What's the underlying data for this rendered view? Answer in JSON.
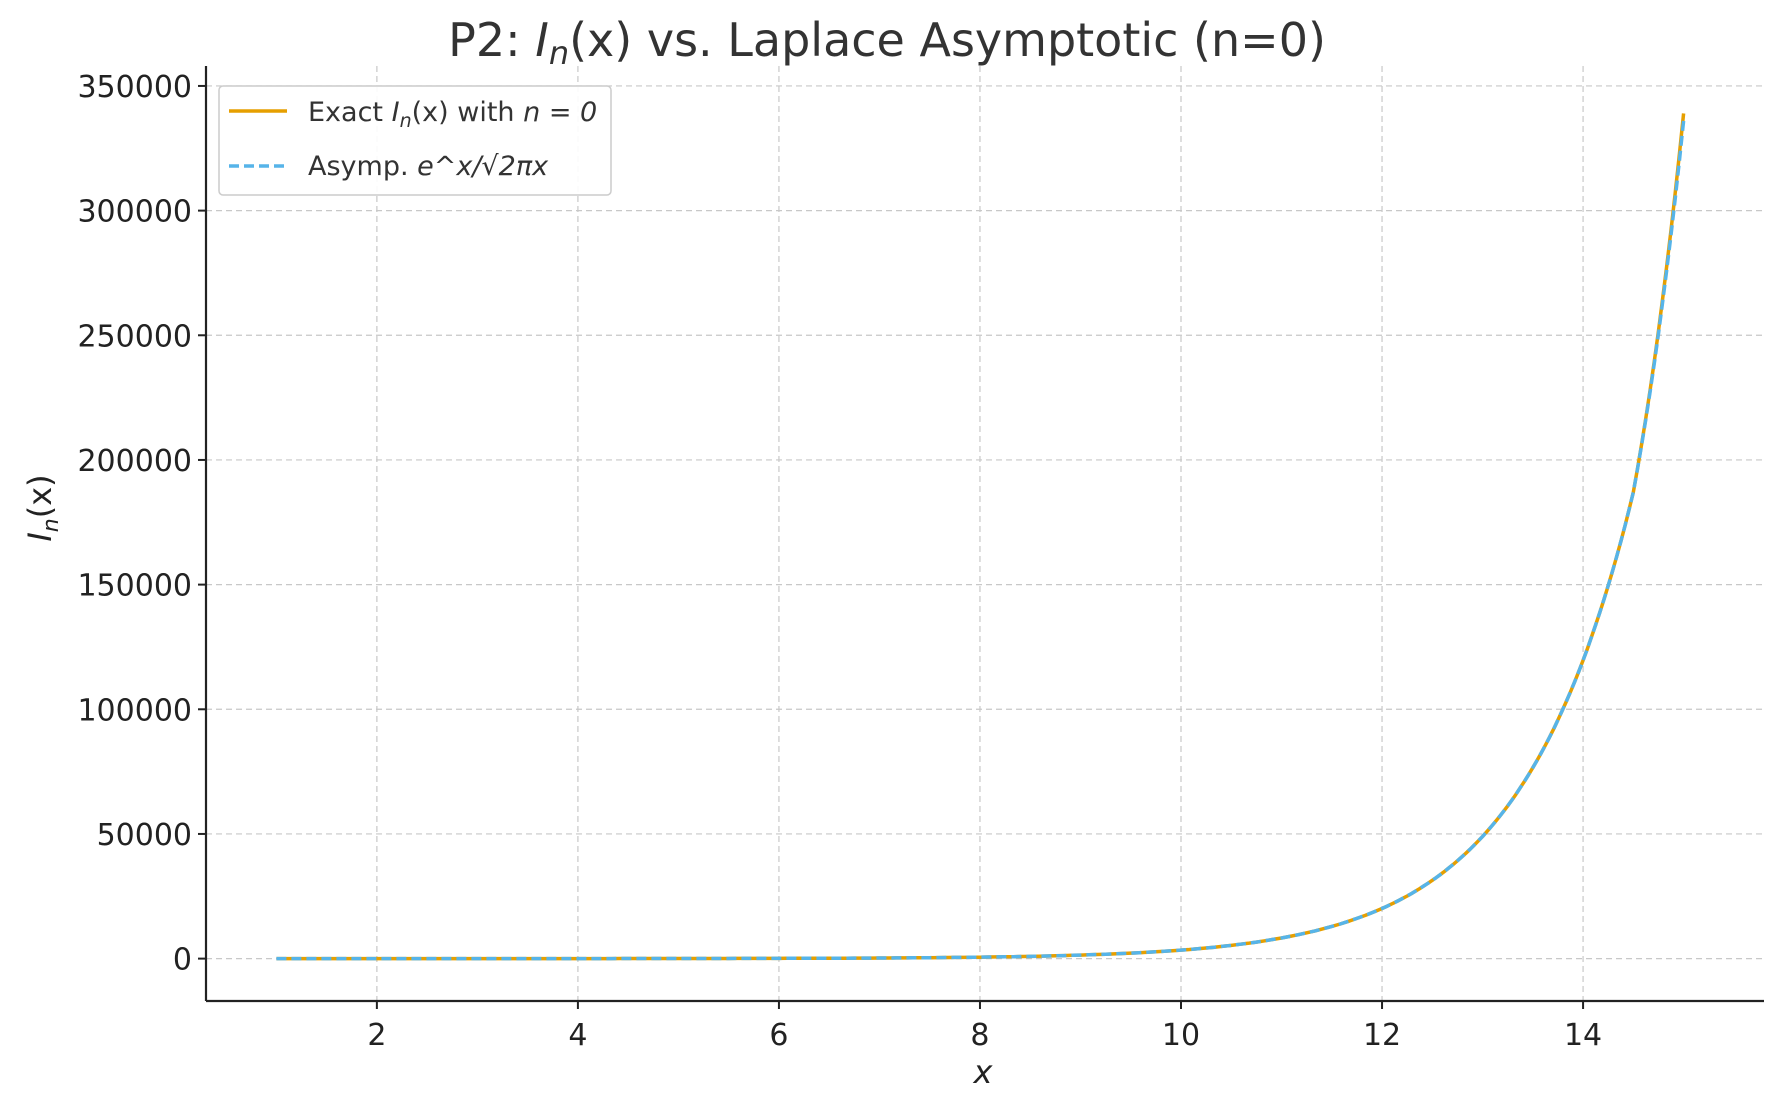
{
  "chart_data": {
    "type": "line",
    "title": {
      "prefix": "P2: ",
      "func": "I",
      "sub": "n",
      "arg": "(x)",
      "suffix": " vs. Laplace Asymptotic (n=0)"
    },
    "xlabel": "x",
    "ylabel": {
      "func": "I",
      "sub": "n",
      "arg": "(x)"
    },
    "xlim": [
      0.3,
      15.8
    ],
    "ylim": [
      -17000,
      358000
    ],
    "xticks": [
      2,
      4,
      6,
      8,
      10,
      12,
      14
    ],
    "yticks": [
      0,
      50000,
      100000,
      150000,
      200000,
      250000,
      300000,
      350000
    ],
    "grid": true,
    "legend_position": "top-left",
    "x_range": [
      1,
      15
    ],
    "series": [
      {
        "name": "Exact I_n(x) with n = 0",
        "legend": {
          "prefix": "Exact ",
          "func": "I",
          "sub": "n",
          "arg": "(x)",
          "middle": " with ",
          "rel": "n = 0"
        },
        "color": "#E69F00",
        "style": "solid",
        "x": [
          1,
          2,
          3,
          4,
          5,
          6,
          7,
          8,
          9,
          10,
          11,
          12,
          12.5,
          13,
          13.5,
          14,
          14.5,
          15
        ],
        "y": [
          1.08,
          2.95,
          7.31,
          17.67,
          42.3,
          101.2,
          242.7,
          584.2,
          1410,
          3413,
          8279,
          20117,
          31397,
          49020,
          76571,
          119648,
          187015,
          339000
        ]
      },
      {
        "name": "Asymp. e^x/√(2πx)",
        "legend": {
          "prefix": "Asymp. ",
          "formula": "e^x/√2πx"
        },
        "color": "#56B4E9",
        "style": "dashed",
        "x": [
          1,
          2,
          3,
          4,
          5,
          6,
          7,
          8,
          9,
          10,
          11,
          12,
          12.5,
          13,
          13.5,
          14,
          14.5,
          15
        ],
        "y": [
          1.08,
          2.95,
          7.31,
          17.67,
          42.3,
          101.2,
          242.7,
          584.2,
          1410,
          3413,
          8279,
          20117,
          31397,
          49020,
          76571,
          119648,
          187015,
          336000
        ]
      }
    ]
  }
}
